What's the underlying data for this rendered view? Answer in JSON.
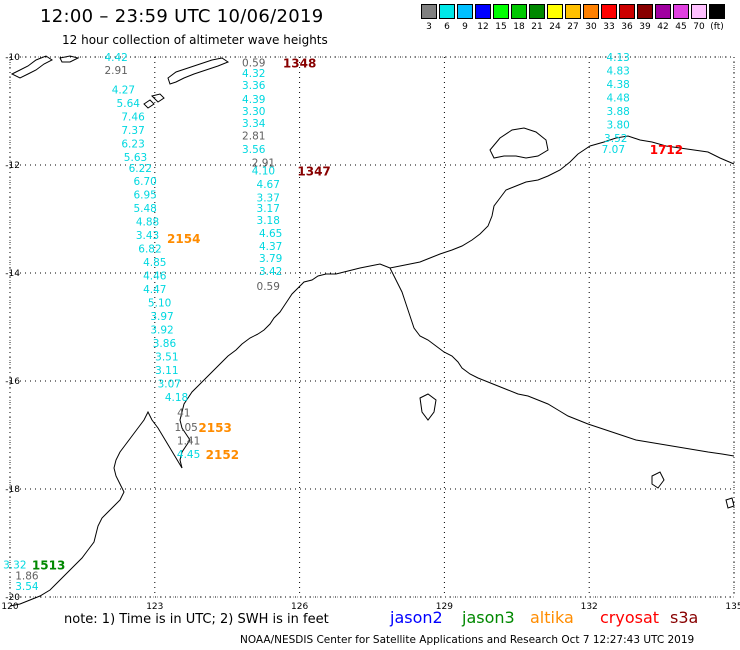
{
  "header": {
    "title": "12:00 – 23:59 UTC 10/06/2019",
    "subtitle": "12 hour collection of altimeter wave heights"
  },
  "color_scale": {
    "labels": [
      "3",
      "6",
      "9",
      "12",
      "15",
      "18",
      "21",
      "24",
      "27",
      "30",
      "33",
      "36",
      "39",
      "42",
      "45",
      "70",
      "(ft)"
    ],
    "colors": [
      "#808080",
      "#00e8e8",
      "#00c0ff",
      "#0000ff",
      "#00ff00",
      "#00c800",
      "#008800",
      "#ffff00",
      "#ffc000",
      "#ff8000",
      "#ff0000",
      "#cc0000",
      "#880000",
      "#a000a0",
      "#e040e0",
      "#ffc0ff",
      "#000000"
    ]
  },
  "map": {
    "lat_labels": [
      "-10",
      "-12",
      "-14",
      "-16",
      "-18",
      "-20"
    ],
    "lon_labels": [
      "120",
      "123",
      "126",
      "129",
      "132",
      "135"
    ],
    "colors": {
      "coast": "#000000",
      "grid": "#000000",
      "jason2": "#0000ff",
      "jason3": "#008800",
      "altika": "#ff8c00",
      "cryosat": "#ff0000",
      "s3a": "#880000",
      "low": "#00d8e0",
      "calm": "#606060"
    },
    "tracks": [
      {
        "pass": "1348",
        "pass_color": "#880000",
        "readings": [
          {
            "lon": 125.05,
            "lat": -10.1,
            "v": "0.59",
            "c": "calm"
          },
          {
            "lon": 125.05,
            "lat": -10.3,
            "v": "4.32",
            "c": "low"
          },
          {
            "lon": 125.05,
            "lat": -10.52,
            "v": "3.36",
            "c": "low"
          },
          {
            "lon": 125.05,
            "lat": -10.78,
            "v": "4.39",
            "c": "low"
          },
          {
            "lon": 125.05,
            "lat": -11.0,
            "v": "3.30",
            "c": "low"
          },
          {
            "lon": 125.05,
            "lat": -11.22,
            "v": "3.34",
            "c": "low"
          },
          {
            "lon": 125.05,
            "lat": -11.45,
            "v": "2.81",
            "c": "calm"
          },
          {
            "lon": 125.05,
            "lat": -11.7,
            "v": "3.56",
            "c": "low"
          }
        ],
        "pass_lon": 126.0,
        "pass_lat": -10.1
      },
      {
        "pass": "1347",
        "pass_color": "#880000",
        "readings": [
          {
            "lon": 125.25,
            "lat": -11.95,
            "v": "2.91",
            "c": "calm"
          },
          {
            "lon": 125.25,
            "lat": -12.1,
            "v": "4.10",
            "c": "low"
          },
          {
            "lon": 125.35,
            "lat": -12.35,
            "v": "4.67",
            "c": "low"
          },
          {
            "lon": 125.35,
            "lat": -12.6,
            "v": "3.37",
            "c": "low"
          },
          {
            "lon": 125.35,
            "lat": -12.8,
            "v": "3.17",
            "c": "low"
          },
          {
            "lon": 125.35,
            "lat": -13.02,
            "v": "3.18",
            "c": "low"
          },
          {
            "lon": 125.4,
            "lat": -13.26,
            "v": "4.65",
            "c": "low"
          },
          {
            "lon": 125.4,
            "lat": -13.5,
            "v": "4.37",
            "c": "low"
          },
          {
            "lon": 125.4,
            "lat": -13.72,
            "v": "3.79",
            "c": "low"
          },
          {
            "lon": 125.4,
            "lat": -13.96,
            "v": "3.42",
            "c": "low"
          },
          {
            "lon": 125.35,
            "lat": -14.24,
            "v": "0.59",
            "c": "calm"
          }
        ],
        "pass_lon": 126.3,
        "pass_lat": -12.1
      },
      {
        "pass": "2154",
        "pass_color": "#ff8c00",
        "readings": [
          {
            "lon": 122.2,
            "lat": -10.0,
            "v": "4.42",
            "c": "low"
          },
          {
            "lon": 122.2,
            "lat": -10.24,
            "v": "2.91",
            "c": "calm"
          },
          {
            "lon": 122.35,
            "lat": -10.6,
            "v": "4.27",
            "c": "low"
          },
          {
            "lon": 122.45,
            "lat": -10.85,
            "v": "5.64",
            "c": "low"
          },
          {
            "lon": 122.55,
            "lat": -11.1,
            "v": "7.46",
            "c": "low"
          },
          {
            "lon": 122.55,
            "lat": -11.35,
            "v": "7.37",
            "c": "low"
          },
          {
            "lon": 122.55,
            "lat": -11.6,
            "v": "6.23",
            "c": "low"
          },
          {
            "lon": 122.6,
            "lat": -11.85,
            "v": "5.63",
            "c": "low"
          },
          {
            "lon": 122.7,
            "lat": -12.06,
            "v": "6.22",
            "c": "low"
          },
          {
            "lon": 122.8,
            "lat": -12.3,
            "v": "6.70",
            "c": "low"
          },
          {
            "lon": 122.8,
            "lat": -12.55,
            "v": "6.95",
            "c": "low"
          },
          {
            "lon": 122.8,
            "lat": -12.8,
            "v": "5.48",
            "c": "low"
          },
          {
            "lon": 122.85,
            "lat": -13.05,
            "v": "4.88",
            "c": "low"
          },
          {
            "lon": 122.85,
            "lat": -13.3,
            "v": "3.43",
            "c": "low"
          },
          {
            "lon": 122.9,
            "lat": -13.55,
            "v": "6.82",
            "c": "low"
          },
          {
            "lon": 123.0,
            "lat": -13.8,
            "v": "4.85",
            "c": "low"
          },
          {
            "lon": 123.0,
            "lat": -14.05,
            "v": "4.46",
            "c": "low"
          },
          {
            "lon": 123.0,
            "lat": -14.3,
            "v": "4.47",
            "c": "low"
          },
          {
            "lon": 123.1,
            "lat": -14.55,
            "v": "5.10",
            "c": "low"
          },
          {
            "lon": 123.15,
            "lat": -14.8,
            "v": "3.97",
            "c": "low"
          },
          {
            "lon": 123.15,
            "lat": -15.05,
            "v": "3.92",
            "c": "low"
          },
          {
            "lon": 123.2,
            "lat": -15.3,
            "v": "3.86",
            "c": "low"
          }
        ],
        "pass_lon": 123.6,
        "pass_lat": -13.35
      },
      {
        "pass": "2153",
        "pass_color": "#ff8c00",
        "readings": [
          {
            "lon": 123.25,
            "lat": -15.55,
            "v": "3.51",
            "c": "low"
          },
          {
            "lon": 123.25,
            "lat": -15.8,
            "v": "3.11",
            "c": "low"
          },
          {
            "lon": 123.3,
            "lat": -16.05,
            "v": "3.07",
            "c": "low"
          },
          {
            "lon": 123.45,
            "lat": -16.3,
            "v": "4.18",
            "c": "low"
          },
          {
            "lon": 123.6,
            "lat": -16.58,
            "v": "41",
            "c": "calm"
          },
          {
            "lon": 123.65,
            "lat": -16.85,
            "v": "1.05",
            "c": "calm"
          },
          {
            "lon": 123.7,
            "lat": -17.1,
            "v": "1.41",
            "c": "calm"
          }
        ],
        "pass_lon": 124.25,
        "pass_lat": -16.85
      },
      {
        "pass": "2152",
        "pass_color": "#ff8c00",
        "readings": [
          {
            "lon": 123.7,
            "lat": -17.35,
            "v": "4.45",
            "c": "low"
          }
        ],
        "pass_lon": 124.4,
        "pass_lat": -17.35
      },
      {
        "pass": "1513",
        "pass_color": "#008800",
        "readings": [
          {
            "lon": 120.1,
            "lat": -19.4,
            "v": "3.32",
            "c": "low"
          },
          {
            "lon": 120.35,
            "lat": -19.6,
            "v": "1.86",
            "c": "calm"
          },
          {
            "lon": 120.35,
            "lat": -19.8,
            "v": "3.54",
            "c": "low"
          }
        ],
        "pass_lon": 120.8,
        "pass_lat": -19.4
      },
      {
        "pass": "1712",
        "pass_color": "#ff0000",
        "readings": [
          {
            "lon": 132.6,
            "lat": -10.0,
            "v": "4.13",
            "c": "low"
          },
          {
            "lon": 132.6,
            "lat": -10.25,
            "v": "4.83",
            "c": "low"
          },
          {
            "lon": 132.6,
            "lat": -10.5,
            "v": "4.38",
            "c": "low"
          },
          {
            "lon": 132.6,
            "lat": -10.75,
            "v": "4.48",
            "c": "low"
          },
          {
            "lon": 132.6,
            "lat": -11.0,
            "v": "3.88",
            "c": "low"
          },
          {
            "lon": 132.6,
            "lat": -11.25,
            "v": "3.80",
            "c": "low"
          },
          {
            "lon": 132.55,
            "lat": -11.5,
            "v": "3.52",
            "c": "low"
          },
          {
            "lon": 132.5,
            "lat": -11.7,
            "v": "7.07",
            "c": "low"
          }
        ],
        "pass_lon": 133.6,
        "pass_lat": -11.7
      }
    ]
  },
  "footer": {
    "note": "note:  1) Time is in UTC;  2) SWH is in feet",
    "satellites": [
      {
        "name": "jason2",
        "color": "#0000ff"
      },
      {
        "name": "jason3",
        "color": "#008800"
      },
      {
        "name": "altika",
        "color": "#ff8c00"
      },
      {
        "name": "cryosat",
        "color": "#ff0000"
      },
      {
        "name": "s3a",
        "color": "#880000"
      }
    ],
    "credit": "NOAA/NESDIS Center for Satellite Applications and Research     Oct  7 12:27:43 UTC 2019"
  }
}
